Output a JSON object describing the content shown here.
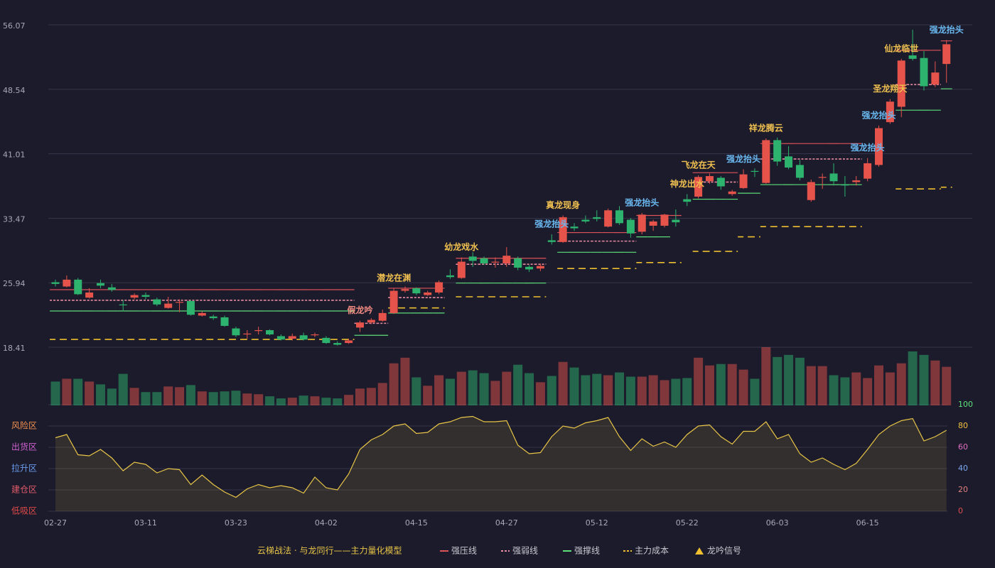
{
  "chart_data": [
    {
      "type": "candlestick",
      "categories": [
        "02-27",
        null,
        null,
        null,
        null,
        null,
        null,
        null,
        "03-11",
        null,
        null,
        null,
        null,
        null,
        null,
        null,
        "03-23",
        null,
        null,
        null,
        null,
        null,
        null,
        null,
        "04-02",
        null,
        null,
        null,
        null,
        null,
        null,
        null,
        "04-15",
        null,
        null,
        null,
        null,
        null,
        null,
        null,
        "04-27",
        null,
        null,
        null,
        null,
        null,
        null,
        null,
        "05-12",
        null,
        null,
        null,
        null,
        null,
        null,
        null,
        "05-22",
        null,
        null,
        null,
        null,
        null,
        null,
        null,
        "06-03",
        null,
        null,
        null,
        null,
        null,
        null,
        null,
        "06-15",
        null,
        null,
        null,
        null,
        null,
        null,
        null
      ],
      "open": [
        26.0,
        25.5,
        26.3,
        24.2,
        25.9,
        25.4,
        23.4,
        24.2,
        24.5,
        24.0,
        23.0,
        23.6,
        23.8,
        22.1,
        22.0,
        21.9,
        20.6,
        19.9,
        20.3,
        20.4,
        19.7,
        19.4,
        19.8,
        19.8,
        19.5,
        18.9,
        18.9,
        20.7,
        21.3,
        21.5,
        22.4,
        25.0,
        25.3,
        24.5,
        24.8,
        26.8,
        26.5,
        29.0,
        28.8,
        28.3,
        28.2,
        28.8,
        27.8,
        27.6,
        30.9,
        30.7,
        32.5,
        33.3,
        33.6,
        32.5,
        34.4,
        33.3,
        31.9,
        32.6,
        32.6,
        33.3,
        35.7,
        36.0,
        37.8,
        38.2,
        36.3,
        37.0,
        39.0,
        37.6,
        42.6,
        40.7,
        39.7,
        35.6,
        38.2,
        38.7,
        37.4,
        37.7,
        38.1,
        39.7,
        44.7,
        46.5,
        52.5,
        52.2,
        49.1,
        51.5
      ],
      "high": [
        26.3,
        26.8,
        26.5,
        25.3,
        26.3,
        25.8,
        23.9,
        24.7,
        24.8,
        24.2,
        24.3,
        24.0,
        23.9,
        22.6,
        22.2,
        22.1,
        20.8,
        20.4,
        20.8,
        20.5,
        19.9,
        20.0,
        20.1,
        20.1,
        19.7,
        19.1,
        19.4,
        21.5,
        21.8,
        22.8,
        25.3,
        25.5,
        25.4,
        25.0,
        26.2,
        27.5,
        28.9,
        29.5,
        29.0,
        28.9,
        30.1,
        29.0,
        28.0,
        28.2,
        31.6,
        33.8,
        32.9,
        33.8,
        34.4,
        34.6,
        34.9,
        33.5,
        34.1,
        33.3,
        34.0,
        34.5,
        36.3,
        38.5,
        38.7,
        38.4,
        36.8,
        39.2,
        39.3,
        42.8,
        42.9,
        41.9,
        40.3,
        38.0,
        38.7,
        39.9,
        38.4,
        38.4,
        40.5,
        44.3,
        47.4,
        52.1,
        55.5,
        53.0,
        51.8,
        54.3
      ],
      "low": [
        25.5,
        25.4,
        24.5,
        24.1,
        25.3,
        24.9,
        22.6,
        24.0,
        24.0,
        23.2,
        22.9,
        22.5,
        22.1,
        22.0,
        21.6,
        20.8,
        19.6,
        19.4,
        19.9,
        19.8,
        19.2,
        19.2,
        19.2,
        19.6,
        18.8,
        18.6,
        18.8,
        20.2,
        21.1,
        21.4,
        22.3,
        24.8,
        24.5,
        24.4,
        24.6,
        26.4,
        26.4,
        27.8,
        28.0,
        27.7,
        27.8,
        27.4,
        27.2,
        27.3,
        30.4,
        30.6,
        32.0,
        32.9,
        33.1,
        32.4,
        32.7,
        31.2,
        31.6,
        32.0,
        32.4,
        32.5,
        34.9,
        35.8,
        37.5,
        36.8,
        36.1,
        36.9,
        38.3,
        37.5,
        39.6,
        39.2,
        37.9,
        35.4,
        36.9,
        37.3,
        36.0,
        37.3,
        37.8,
        39.5,
        44.5,
        45.3,
        51.9,
        48.4,
        48.8,
        49.3
      ],
      "close": [
        25.8,
        26.3,
        24.6,
        24.8,
        25.6,
        25.1,
        23.3,
        24.5,
        24.3,
        23.4,
        23.5,
        23.7,
        22.2,
        22.4,
        21.8,
        20.9,
        19.8,
        20.0,
        20.4,
        19.9,
        19.3,
        19.7,
        19.3,
        19.9,
        18.9,
        18.7,
        19.2,
        21.3,
        21.6,
        22.4,
        25.0,
        25.2,
        24.7,
        24.8,
        26.0,
        26.6,
        28.4,
        28.5,
        28.2,
        28.4,
        29.1,
        27.7,
        27.5,
        27.9,
        30.7,
        33.6,
        32.3,
        33.1,
        33.4,
        34.4,
        32.9,
        31.7,
        33.9,
        33.1,
        33.9,
        33.0,
        35.4,
        38.3,
        38.4,
        37.2,
        36.6,
        38.6,
        38.9,
        42.6,
        40.1,
        39.4,
        38.2,
        37.7,
        38.3,
        37.8,
        37.3,
        37.9,
        39.9,
        44.0,
        47.1,
        51.9,
        52.1,
        48.9,
        50.5,
        53.8
      ],
      "up_color": "#e5534b",
      "down_color": "#2db36e",
      "ylim": [
        18.41,
        56.07
      ],
      "yticks": [
        18.41,
        25.94,
        33.47,
        41.01,
        48.54,
        56.07
      ],
      "grid": true,
      "levels": [
        {
          "name": "强压线",
          "color": "#e0525a",
          "style": "solid",
          "values": [
            25.13,
            25.13,
            25.13,
            25.13,
            25.13,
            25.13,
            25.13,
            25.13,
            25.13,
            25.13,
            25.13,
            25.13,
            25.13,
            25.13,
            25.13,
            25.13,
            25.13,
            25.13,
            25.13,
            25.13,
            25.13,
            25.13,
            25.13,
            25.13,
            25.13,
            25.13,
            25.13,
            null,
            null,
            null,
            25.3,
            25.3,
            25.3,
            25.3,
            25.3,
            null,
            28.8,
            28.8,
            28.8,
            28.8,
            28.8,
            28.8,
            28.8,
            28.8,
            null,
            31.8,
            31.8,
            31.8,
            31.8,
            31.8,
            31.8,
            31.8,
            33.8,
            33.8,
            33.8,
            33.8,
            null,
            38.8,
            38.8,
            38.8,
            38.8,
            null,
            null,
            42.2,
            42.2,
            42.2,
            42.2,
            42.2,
            42.2,
            42.2,
            42.2,
            42.2,
            null,
            null,
            null,
            53.1,
            53.1,
            53.1,
            53.1,
            54.2
          ]
        },
        {
          "name": "强弱线",
          "color": "#e88aa0",
          "style": "dashed",
          "values": [
            23.89,
            23.89,
            23.89,
            23.89,
            23.89,
            23.89,
            23.89,
            23.89,
            23.89,
            23.89,
            23.89,
            23.89,
            23.89,
            23.89,
            23.89,
            23.89,
            23.89,
            23.89,
            23.89,
            23.89,
            23.89,
            23.89,
            23.89,
            23.89,
            23.89,
            23.89,
            23.89,
            21.2,
            21.2,
            21.2,
            24.2,
            24.2,
            24.2,
            24.2,
            24.2,
            null,
            28.1,
            28.1,
            28.1,
            28.1,
            28.1,
            28.1,
            28.1,
            28.1,
            null,
            30.8,
            30.8,
            30.8,
            30.8,
            30.8,
            30.8,
            30.8,
            null,
            null,
            null,
            null,
            null,
            37.7,
            37.7,
            37.7,
            37.7,
            null,
            null,
            40.4,
            40.4,
            40.4,
            40.4,
            40.4,
            40.4,
            40.4,
            40.4,
            40.4,
            null,
            null,
            null,
            49.1,
            49.1,
            49.1,
            49.1,
            null
          ]
        },
        {
          "name": "强撑线",
          "color": "#5ee07a",
          "style": "solid",
          "values": [
            22.64,
            22.64,
            22.64,
            22.64,
            22.64,
            22.64,
            22.64,
            22.64,
            22.64,
            22.64,
            22.64,
            22.64,
            22.64,
            22.64,
            22.64,
            22.64,
            22.64,
            22.64,
            22.64,
            22.64,
            22.64,
            22.64,
            22.64,
            22.64,
            22.64,
            22.64,
            22.64,
            19.8,
            19.8,
            19.8,
            22.4,
            22.4,
            22.4,
            22.4,
            22.4,
            null,
            25.9,
            25.9,
            25.9,
            25.9,
            25.9,
            25.9,
            25.9,
            25.9,
            null,
            29.5,
            29.5,
            29.5,
            29.5,
            29.5,
            29.5,
            29.5,
            31.3,
            31.3,
            31.3,
            null,
            null,
            35.7,
            35.7,
            35.7,
            35.7,
            36.4,
            36.4,
            37.4,
            37.4,
            37.4,
            37.4,
            37.4,
            37.4,
            37.4,
            37.4,
            37.4,
            null,
            null,
            null,
            46.1,
            46.1,
            46.1,
            46.1,
            48.6
          ]
        },
        {
          "name": "主力成本",
          "color": "#f0c030",
          "style": "dashed",
          "values": [
            19.32,
            19.32,
            19.32,
            19.32,
            19.32,
            19.32,
            19.32,
            19.32,
            19.32,
            19.32,
            19.32,
            19.32,
            19.32,
            19.32,
            19.32,
            19.32,
            19.32,
            19.32,
            19.32,
            19.32,
            19.32,
            19.32,
            19.32,
            19.32,
            19.32,
            19.32,
            19.32,
            null,
            null,
            null,
            23.0,
            23.0,
            23.0,
            23.0,
            23.0,
            null,
            24.3,
            24.3,
            24.3,
            24.3,
            24.3,
            24.3,
            24.3,
            24.3,
            null,
            27.6,
            27.6,
            27.6,
            27.6,
            27.6,
            27.6,
            27.6,
            28.3,
            28.3,
            28.3,
            28.3,
            null,
            29.6,
            29.6,
            29.6,
            29.6,
            31.3,
            31.3,
            32.5,
            32.5,
            32.5,
            32.5,
            32.5,
            32.5,
            32.5,
            32.5,
            32.5,
            null,
            null,
            null,
            36.9,
            36.9,
            36.9,
            36.9,
            37.1
          ]
        }
      ],
      "signals": [
        null,
        null,
        null,
        null,
        null,
        null,
        null,
        null,
        null,
        null,
        null,
        null,
        null,
        null,
        null,
        null,
        null,
        null,
        null,
        null,
        null,
        null,
        null,
        null,
        null,
        null,
        null,
        {
          "text": "假龙吟",
          "color": "#f08a80"
        },
        null,
        null,
        {
          "text": "潜龙在渊",
          "color": "#f0c050"
        },
        null,
        null,
        null,
        null,
        null,
        {
          "text": "幼龙戏水",
          "color": "#f0c050"
        },
        null,
        null,
        null,
        null,
        null,
        null,
        null,
        {
          "text": "强龙抬头",
          "color": "#6ab8f0"
        },
        {
          "text": "真龙现身",
          "color": "#f0c050"
        },
        null,
        null,
        null,
        null,
        null,
        null,
        {
          "text": "强龙抬头",
          "color": "#6ab8f0"
        },
        null,
        null,
        null,
        {
          "text": "神龙出水",
          "color": "#f0c050"
        },
        {
          "text": "飞龙在天",
          "color": "#f0c050"
        },
        null,
        null,
        null,
        {
          "text": "强龙抬头",
          "color": "#6ab8f0"
        },
        null,
        {
          "text": "祥龙腾云",
          "color": "#f0c050"
        },
        null,
        null,
        null,
        null,
        null,
        null,
        null,
        null,
        {
          "text": "强龙抬头",
          "color": "#6ab8f0"
        },
        {
          "text": "强龙抬头",
          "color": "#6ab8f0"
        },
        {
          "text": "圣龙翔天",
          "color": "#f0c050"
        },
        {
          "text": "仙龙临世",
          "color": "#f0c050"
        },
        null,
        null,
        null,
        {
          "text": "强龙抬头",
          "color": "#6ab8f0"
        }
      ],
      "legend_title": "云梯战法 · 与龙同行——主力量化模型",
      "signal_legend": {
        "name": "龙吟信号",
        "color": "#f0c030"
      }
    },
    {
      "type": "bar",
      "values": [
        34,
        38,
        38,
        34,
        30,
        24,
        45,
        25,
        19,
        19,
        27,
        26,
        29,
        20,
        19,
        20,
        21,
        17,
        16,
        13,
        10,
        11,
        14,
        13,
        11,
        10,
        15,
        24,
        25,
        32,
        60,
        68,
        40,
        28,
        43,
        38,
        48,
        50,
        46,
        35,
        48,
        58,
        46,
        33,
        42,
        62,
        54,
        43,
        45,
        43,
        47,
        41,
        41,
        43,
        36,
        38,
        39,
        68,
        57,
        59,
        59,
        51,
        38,
        83,
        69,
        72,
        68,
        56,
        56,
        43,
        40,
        47,
        39,
        57,
        47,
        60,
        77,
        72,
        64,
        55
      ]
    },
    {
      "type": "line",
      "values": [
        69,
        72,
        53,
        52,
        58,
        50,
        38,
        46,
        44,
        36,
        40,
        39,
        25,
        34,
        25,
        18,
        13,
        21,
        25,
        22,
        24,
        22,
        17,
        32,
        22,
        20,
        35,
        58,
        67,
        72,
        80,
        82,
        73,
        74,
        82,
        84,
        88,
        89,
        84,
        84,
        85,
        62,
        54,
        55,
        70,
        80,
        78,
        83,
        85,
        88,
        70,
        57,
        68,
        61,
        65,
        60,
        72,
        80,
        81,
        70,
        63,
        75,
        75,
        84,
        68,
        72,
        54,
        46,
        50,
        44,
        39,
        45,
        58,
        72,
        80,
        85,
        87,
        66,
        70,
        76
      ],
      "color": "#e8c547",
      "ylim": [
        0,
        100
      ],
      "yticks": [
        0,
        20,
        40,
        60,
        80,
        100
      ],
      "ytick_colors": [
        "#e05050",
        "#e08080",
        "#7aa8f0",
        "#e070c0",
        "#f0c040",
        "#5ee07a"
      ],
      "grid": true,
      "zones": [
        {
          "label": "风险区",
          "value": 80,
          "color": "#f09050"
        },
        {
          "label": "出货区",
          "value": 60,
          "color": "#d060d0"
        },
        {
          "label": "拉升区",
          "value": 40,
          "color": "#6a9cf0"
        },
        {
          "label": "建仓区",
          "value": 20,
          "color": "#e05a6a"
        },
        {
          "label": "低吸区",
          "value": 0,
          "color": "#e04a4a"
        }
      ]
    }
  ]
}
